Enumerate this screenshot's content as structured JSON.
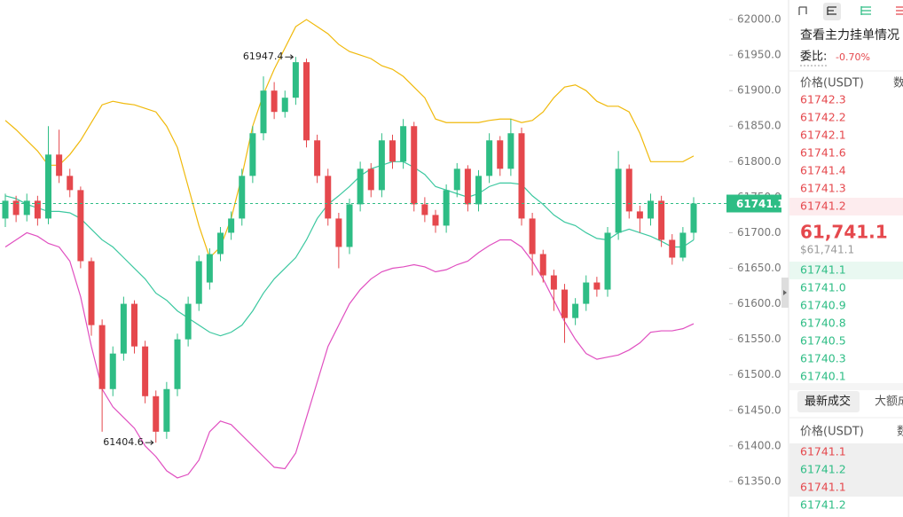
{
  "chart_data": {
    "type": "candlestick",
    "up_color": "#2ebd85",
    "down_color": "#e5484d",
    "ylim": [
      61300,
      62027.5
    ],
    "yticks": [
      {
        "value": 62000,
        "label": "62000.0"
      },
      {
        "value": 61950,
        "label": "61950.0"
      },
      {
        "value": 61900,
        "label": "61900.0"
      },
      {
        "value": 61850,
        "label": "61850.0"
      },
      {
        "value": 61800,
        "label": "61800.0"
      },
      {
        "value": 61750,
        "label": "61750.0"
      },
      {
        "value": 61700,
        "label": "61700.0"
      },
      {
        "value": 61650,
        "label": "61650.0"
      },
      {
        "value": 61600,
        "label": "61600.0"
      },
      {
        "value": 61550,
        "label": "61550.0"
      },
      {
        "value": 61500,
        "label": "61500.0"
      },
      {
        "value": 61450,
        "label": "61450.0"
      },
      {
        "value": 61400,
        "label": "61400.0"
      },
      {
        "value": 61350,
        "label": "61350.0"
      }
    ],
    "open": [
      61720,
      61745,
      61725,
      61745,
      61720,
      61810,
      61780,
      61760,
      61660,
      61570,
      61480,
      61530,
      61600,
      61540,
      61470,
      61420,
      61480,
      61550,
      61600,
      61630,
      61670,
      61700,
      61720,
      61780,
      61840,
      61900,
      61870,
      61890,
      61940,
      61830,
      61780,
      61720,
      61680,
      61740,
      61790,
      61760,
      61830,
      61800,
      61850,
      61740,
      61725,
      61710,
      61760,
      61790,
      61740,
      61780,
      61830,
      61790,
      61840,
      61720,
      61670,
      61640,
      61620,
      61580,
      61600,
      61630,
      61620,
      61700,
      61790,
      61730,
      61720,
      61745,
      61690,
      61665,
      61700
    ],
    "high": [
      61755,
      61752,
      61755,
      61752,
      61850,
      61845,
      61790,
      61765,
      61665,
      61578,
      61540,
      61610,
      61605,
      61548,
      61478,
      61490,
      61558,
      61610,
      61668,
      61678,
      61708,
      61730,
      61790,
      61850,
      61920,
      61912,
      61900,
      61947.4,
      61945,
      61838,
      61790,
      61728,
      61748,
      61800,
      61798,
      61840,
      61838,
      61860,
      61856,
      61750,
      61732,
      61768,
      61798,
      61795,
      61788,
      61840,
      61836,
      61860,
      61848,
      61728,
      61676,
      61648,
      61628,
      61608,
      61640,
      61638,
      61708,
      61815,
      61796,
      61738,
      61755,
      61752,
      61698,
      61708,
      61750
    ],
    "low": [
      61708,
      61715,
      61716,
      61710,
      61712,
      61770,
      61750,
      61650,
      61555,
      61420,
      61470,
      61520,
      61530,
      61460,
      61404.6,
      61410,
      61470,
      61540,
      61590,
      61620,
      61660,
      61690,
      61710,
      61770,
      61830,
      61860,
      61862,
      61880,
      61820,
      61770,
      61710,
      61650,
      61670,
      61730,
      61750,
      61750,
      61790,
      61790,
      61730,
      61715,
      61700,
      61700,
      61750,
      61730,
      61730,
      61770,
      61780,
      61780,
      61710,
      61640,
      61630,
      61590,
      61545,
      61570,
      61590,
      61610,
      61610,
      61690,
      61720,
      61700,
      61710,
      61680,
      61655,
      61660,
      61690
    ],
    "close": [
      61745,
      61725,
      61745,
      61720,
      61810,
      61780,
      61760,
      61660,
      61570,
      61480,
      61530,
      61600,
      61540,
      61470,
      61420,
      61480,
      61550,
      61600,
      61660,
      61670,
      61700,
      61720,
      61780,
      61840,
      61900,
      61870,
      61890,
      61940,
      61830,
      61780,
      61720,
      61680,
      61740,
      61790,
      61760,
      61830,
      61800,
      61850,
      61740,
      61725,
      61710,
      61760,
      61790,
      61740,
      61780,
      61830,
      61790,
      61840,
      61720,
      61670,
      61640,
      61620,
      61580,
      61600,
      61630,
      61620,
      61700,
      61790,
      61730,
      61720,
      61745,
      61690,
      61665,
      61700,
      61741.1
    ],
    "bands": [
      {
        "color": "#f0b90b",
        "values": [
          61858,
          61845,
          61830,
          61815,
          61795,
          61795,
          61810,
          61830,
          61855,
          61880,
          61885,
          61882,
          61880,
          61875,
          61870,
          61850,
          61820,
          61765,
          61710,
          61665,
          61680,
          61720,
          61780,
          61850,
          61895,
          61930,
          61960,
          61990,
          62000,
          61990,
          61980,
          61965,
          61955,
          61950,
          61945,
          61935,
          61930,
          61920,
          61905,
          61890,
          61860,
          61855,
          61855,
          61855,
          61855,
          61858,
          61860,
          61860,
          61855,
          61858,
          61870,
          61890,
          61905,
          61908,
          61900,
          61885,
          61878,
          61878,
          61870,
          61840,
          61800,
          61800,
          61800,
          61800,
          61808
        ]
      },
      {
        "color": "#3cc8a0",
        "values": [
          61752,
          61748,
          61740,
          61735,
          61730,
          61730,
          61728,
          61720,
          61705,
          61690,
          61680,
          61665,
          61650,
          61635,
          61615,
          61605,
          61590,
          61580,
          61570,
          61560,
          61555,
          61560,
          61570,
          61590,
          61615,
          61635,
          61650,
          61665,
          61690,
          61720,
          61740,
          61752,
          61765,
          61780,
          61790,
          61795,
          61800,
          61800,
          61792,
          61782,
          61765,
          61760,
          61755,
          61750,
          61755,
          61765,
          61770,
          61770,
          61768,
          61752,
          61740,
          61725,
          61715,
          61710,
          61700,
          61692,
          61690,
          61700,
          61705,
          61700,
          61695,
          61688,
          61680,
          61680,
          61690
        ]
      },
      {
        "color": "#e04fc0",
        "values": [
          61680,
          61690,
          61700,
          61695,
          61685,
          61680,
          61660,
          61610,
          61540,
          61480,
          61455,
          61440,
          61425,
          61400,
          61385,
          61365,
          61355,
          61360,
          61380,
          61420,
          61435,
          61430,
          61415,
          61400,
          61385,
          61370,
          61368,
          61390,
          61440,
          61490,
          61540,
          61570,
          61600,
          61620,
          61635,
          61645,
          61650,
          61652,
          61655,
          61652,
          61645,
          61648,
          61655,
          61660,
          61672,
          61682,
          61690,
          61690,
          61680,
          61660,
          61635,
          61605,
          61575,
          61550,
          61530,
          61522,
          61525,
          61528,
          61535,
          61545,
          61560,
          61562,
          61562,
          61565,
          61572
        ]
      }
    ]
  },
  "order_book": {
    "title": "查看主力挂单情况",
    "ratio_label": "委比:",
    "ratio_value": "-0.70%",
    "price_header": "价格(USDT)",
    "amount_header": "数",
    "asks": [
      "61742.3",
      "61742.2",
      "61742.1",
      "61741.6",
      "61741.4",
      "61741.3",
      "61741.2"
    ],
    "last_price": "61,741.1",
    "last_price_usd": "$61,741.1",
    "bids": [
      "61741.1",
      "61741.0",
      "61740.9",
      "61740.8",
      "61740.5",
      "61740.3",
      "61740.1"
    ],
    "ask_color": "#e5484d",
    "bid_color": "#2ebd85"
  },
  "trades": {
    "tabs": [
      "最新成交",
      "大额成"
    ],
    "price_header": "价格(USDT)",
    "amount_header": "数",
    "rows": [
      {
        "price": "61741.1",
        "color": "#e5484d"
      },
      {
        "price": "61741.2",
        "color": "#2ebd85"
      },
      {
        "price": "61741.1",
        "color": "#e5484d"
      },
      {
        "price": "61741.2",
        "color": "#2ebd85"
      }
    ]
  }
}
